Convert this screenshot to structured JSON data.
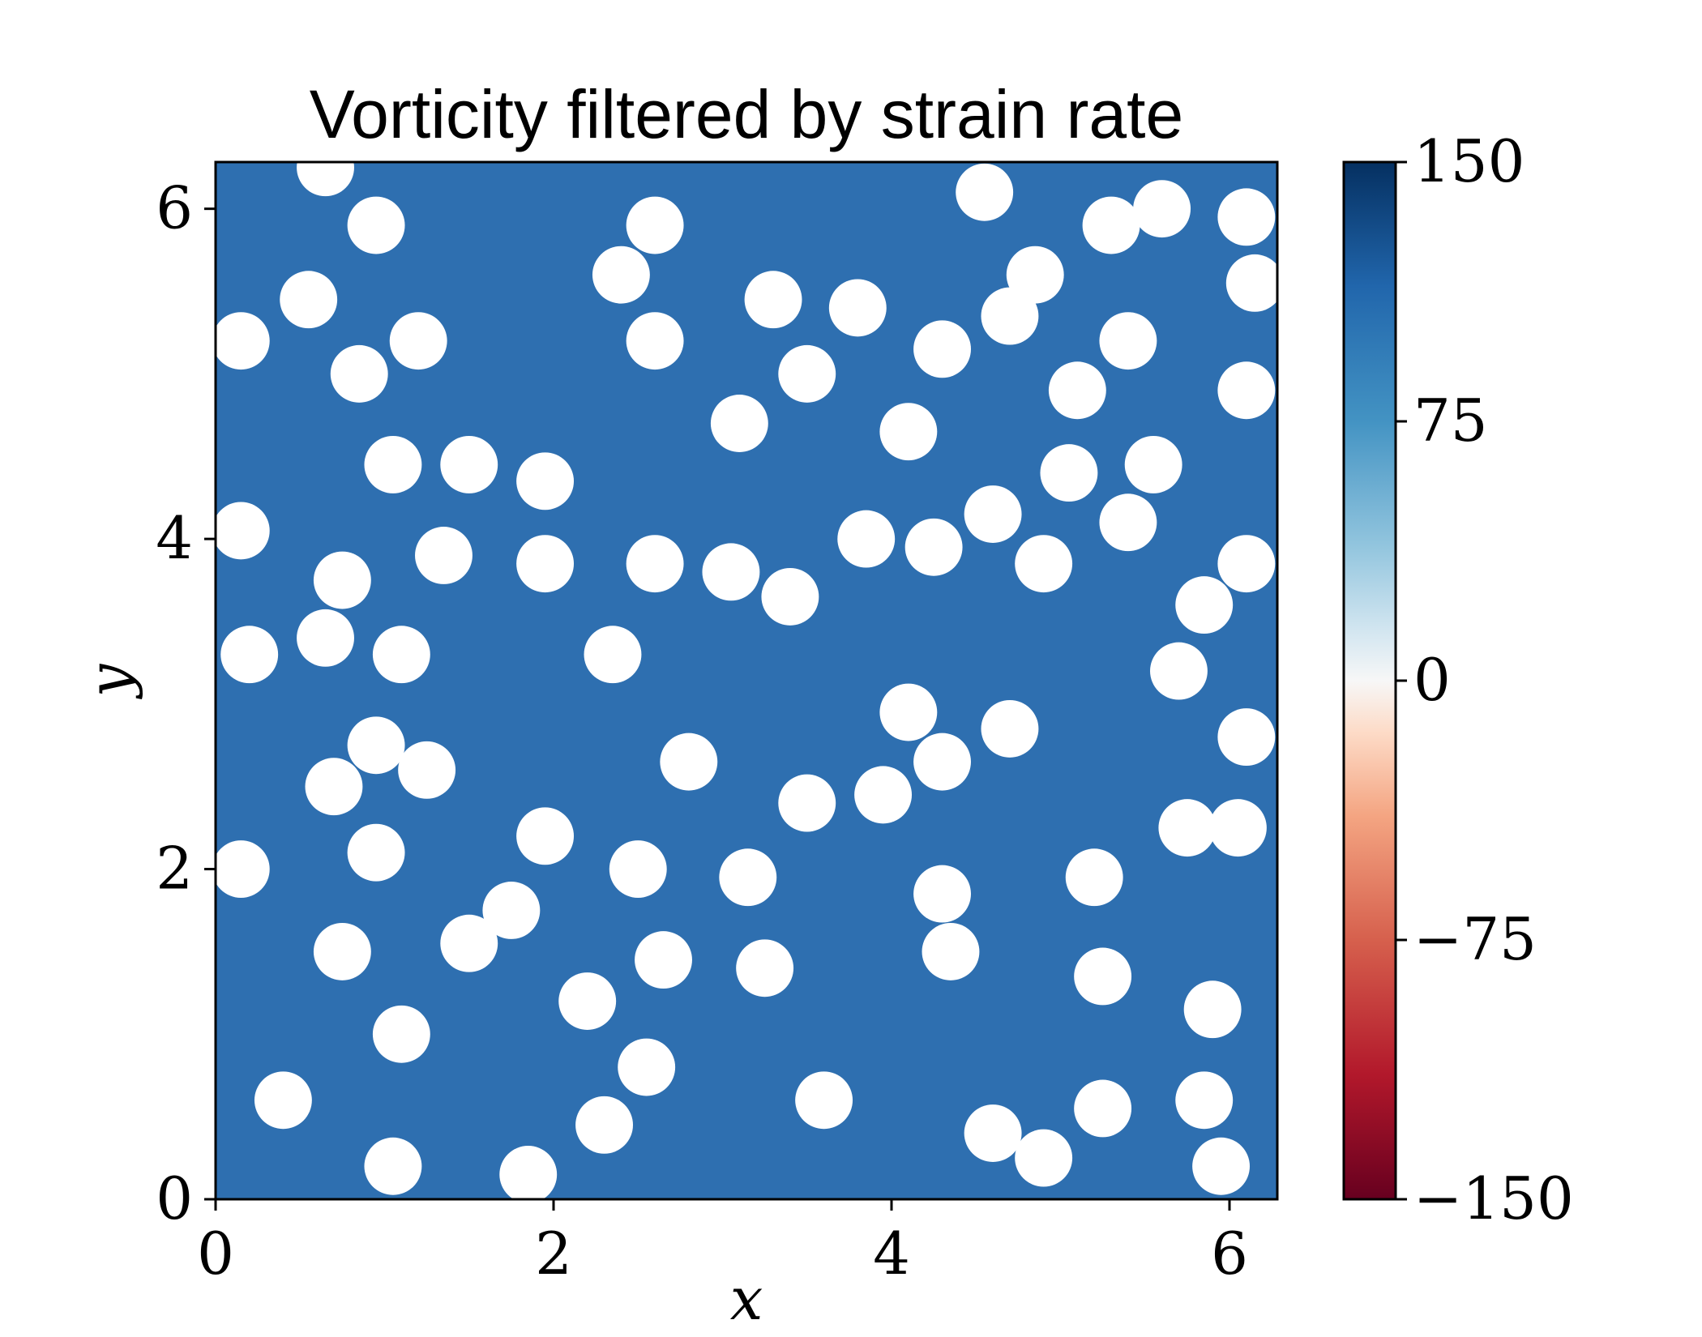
{
  "chart_data": {
    "type": "heatmap",
    "title": "Vorticity filtered by strain rate",
    "xlabel": "x",
    "ylabel": "y",
    "xlim": [
      0,
      6.283
    ],
    "ylim": [
      0,
      6.283
    ],
    "xticks": [
      0,
      2,
      4,
      6
    ],
    "yticks": [
      0,
      2,
      4,
      6
    ],
    "xtick_labels": [
      "0",
      "2",
      "4",
      "6"
    ],
    "ytick_labels": [
      "0",
      "2",
      "4",
      "6"
    ],
    "colorbar": {
      "colormap": "RdBu",
      "range": [
        -150,
        150
      ],
      "ticks": [
        150,
        75,
        0,
        -75,
        -150
      ],
      "tick_labels": [
        "150",
        "75",
        "0",
        "−75",
        "−150"
      ],
      "colors": {
        "max": "#053061",
        "high": "#2166ac",
        "mid_high": "#92c5de",
        "zero": "#f7f7f7",
        "mid_low": "#f4a582",
        "low": "#b2182b",
        "min": "#67001f"
      }
    },
    "masked_region_color": "#ffffff",
    "masked_circle_radius": 0.17,
    "masked_circle_centers": [
      [
        0.65,
        6.25
      ],
      [
        0.95,
        5.9
      ],
      [
        2.4,
        5.6
      ],
      [
        2.6,
        5.9
      ],
      [
        3.3,
        5.45
      ],
      [
        3.8,
        5.4
      ],
      [
        4.55,
        6.1
      ],
      [
        4.85,
        5.6
      ],
      [
        5.3,
        5.9
      ],
      [
        5.6,
        6.0
      ],
      [
        6.1,
        5.95
      ],
      [
        6.15,
        5.55
      ],
      [
        0.15,
        5.2
      ],
      [
        0.55,
        5.45
      ],
      [
        1.2,
        5.2
      ],
      [
        0.85,
        5.0
      ],
      [
        2.6,
        5.2
      ],
      [
        3.5,
        5.0
      ],
      [
        4.3,
        5.15
      ],
      [
        4.7,
        5.35
      ],
      [
        5.4,
        5.2
      ],
      [
        5.1,
        4.9
      ],
      [
        6.1,
        4.9
      ],
      [
        3.1,
        4.7
      ],
      [
        4.1,
        4.65
      ],
      [
        1.05,
        4.45
      ],
      [
        1.5,
        4.45
      ],
      [
        1.95,
        4.35
      ],
      [
        5.05,
        4.4
      ],
      [
        5.55,
        4.45
      ],
      [
        0.15,
        4.05
      ],
      [
        0.75,
        3.75
      ],
      [
        1.35,
        3.9
      ],
      [
        1.95,
        3.85
      ],
      [
        2.6,
        3.85
      ],
      [
        3.05,
        3.8
      ],
      [
        3.4,
        3.65
      ],
      [
        3.85,
        4.0
      ],
      [
        4.25,
        3.95
      ],
      [
        4.6,
        4.15
      ],
      [
        4.9,
        3.85
      ],
      [
        5.4,
        4.1
      ],
      [
        5.85,
        3.6
      ],
      [
        6.1,
        3.85
      ],
      [
        0.65,
        3.4
      ],
      [
        1.1,
        3.3
      ],
      [
        0.2,
        3.3
      ],
      [
        2.35,
        3.3
      ],
      [
        5.7,
        3.2
      ],
      [
        0.95,
        2.75
      ],
      [
        1.25,
        2.6
      ],
      [
        2.8,
        2.65
      ],
      [
        4.1,
        2.95
      ],
      [
        4.3,
        2.65
      ],
      [
        4.7,
        2.85
      ],
      [
        6.1,
        2.8
      ],
      [
        0.7,
        2.5
      ],
      [
        3.5,
        2.4
      ],
      [
        3.95,
        2.45
      ],
      [
        0.15,
        2.0
      ],
      [
        0.95,
        2.1
      ],
      [
        1.95,
        2.2
      ],
      [
        2.5,
        2.0
      ],
      [
        3.15,
        1.95
      ],
      [
        4.3,
        1.85
      ],
      [
        5.2,
        1.95
      ],
      [
        5.75,
        2.25
      ],
      [
        6.05,
        2.25
      ],
      [
        0.75,
        1.5
      ],
      [
        1.5,
        1.55
      ],
      [
        1.75,
        1.75
      ],
      [
        2.65,
        1.45
      ],
      [
        3.25,
        1.4
      ],
      [
        4.35,
        1.5
      ],
      [
        5.25,
        1.35
      ],
      [
        5.9,
        1.15
      ],
      [
        2.2,
        1.2
      ],
      [
        1.1,
        1.0
      ],
      [
        2.55,
        0.8
      ],
      [
        0.4,
        0.6
      ],
      [
        2.3,
        0.45
      ],
      [
        3.6,
        0.6
      ],
      [
        4.6,
        0.4
      ],
      [
        5.25,
        0.55
      ],
      [
        5.85,
        0.6
      ],
      [
        1.05,
        0.2
      ],
      [
        1.85,
        0.15
      ],
      [
        4.9,
        0.25
      ],
      [
        5.95,
        0.2
      ]
    ]
  }
}
